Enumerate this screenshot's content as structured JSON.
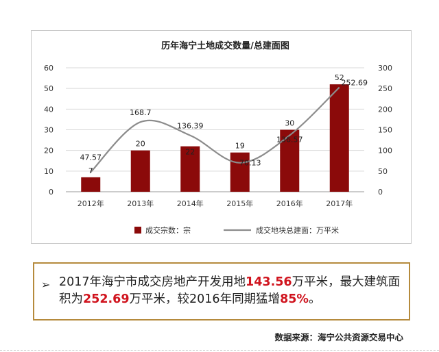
{
  "chart_data": {
    "type": "bar",
    "title": "历年海宁土地成交数量/总建面图",
    "categories": [
      "2012年",
      "2013年",
      "2014年",
      "2015年",
      "2016年",
      "2017年"
    ],
    "bar_series": {
      "name": "成交宗数：宗",
      "values": [
        7,
        20,
        22,
        19,
        30,
        52
      ],
      "labels": [
        "7",
        "20",
        "22",
        "19",
        "30",
        "52"
      ],
      "color": "#8b0a0a"
    },
    "line_series": {
      "name": "成交地块总建面：万平米",
      "values": [
        47.57,
        168.7,
        136.39,
        70.13,
        136.57,
        252.69
      ],
      "labels": [
        "47.57",
        "168.7",
        "136.39",
        "70.13",
        "136.57",
        "252.69"
      ],
      "color": "#8c8c8c"
    },
    "y_left": {
      "lim": [
        0,
        60
      ],
      "ticks": [
        "0",
        "10",
        "20",
        "30",
        "40",
        "50",
        "60"
      ]
    },
    "y_right": {
      "lim": [
        0,
        300
      ],
      "ticks": [
        "0",
        "50",
        "100",
        "150",
        "200",
        "250",
        "300"
      ]
    },
    "grid": true,
    "legend_position": "bottom"
  },
  "summary": {
    "bullet": "➢",
    "parts": [
      {
        "text": "2017年海宁市成交房地产开发用地",
        "highlight": false
      },
      {
        "text": "143.56",
        "highlight": true
      },
      {
        "text": "万平米，最大建筑面积为",
        "highlight": false
      },
      {
        "text": "252.69",
        "highlight": true
      },
      {
        "text": "万平米，较2016年同期猛增",
        "highlight": false
      },
      {
        "text": "85%",
        "highlight": true
      },
      {
        "text": "。",
        "highlight": false
      }
    ]
  },
  "source": "数据来源：海宁公共资源交易中心",
  "colors": {
    "accent_red": "#d0141e",
    "box_border": "#b58a3c"
  }
}
